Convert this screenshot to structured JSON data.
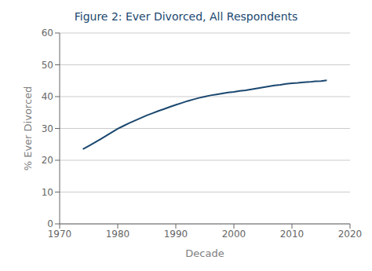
{
  "chart_data": {
    "type": "line",
    "title": "Figure 2:  Ever Divorced, All Respondents",
    "xlabel": "Decade",
    "ylabel": "% Ever Divorced",
    "x": [
      1974,
      1975,
      1976,
      1977,
      1978,
      1979,
      1980,
      1981,
      1982,
      1983,
      1984,
      1985,
      1986,
      1987,
      1988,
      1989,
      1990,
      1991,
      1992,
      1993,
      1994,
      1995,
      1996,
      1997,
      1998,
      1999,
      2000,
      2001,
      2002,
      2003,
      2004,
      2005,
      2006,
      2007,
      2008,
      2009,
      2010,
      2011,
      2012,
      2013,
      2014,
      2015,
      2016
    ],
    "values": [
      23.5,
      24.5,
      25.5,
      26.6,
      27.7,
      28.8,
      29.9,
      30.8,
      31.7,
      32.5,
      33.3,
      34.1,
      34.8,
      35.5,
      36.1,
      36.8,
      37.4,
      38.0,
      38.6,
      39.1,
      39.6,
      40.0,
      40.4,
      40.7,
      41.0,
      41.3,
      41.5,
      41.8,
      42.0,
      42.3,
      42.6,
      42.9,
      43.2,
      43.5,
      43.7,
      44.0,
      44.2,
      44.3,
      44.5,
      44.6,
      44.8,
      44.9,
      45.1
    ],
    "color": "#1a476f",
    "xlim": [
      1970,
      2020
    ],
    "ylim": [
      0,
      60
    ],
    "xticks": [
      1970,
      1980,
      1990,
      2000,
      2010,
      2020
    ],
    "yticks": [
      0,
      10,
      20,
      30,
      40,
      50,
      60
    ],
    "grid": "y"
  }
}
